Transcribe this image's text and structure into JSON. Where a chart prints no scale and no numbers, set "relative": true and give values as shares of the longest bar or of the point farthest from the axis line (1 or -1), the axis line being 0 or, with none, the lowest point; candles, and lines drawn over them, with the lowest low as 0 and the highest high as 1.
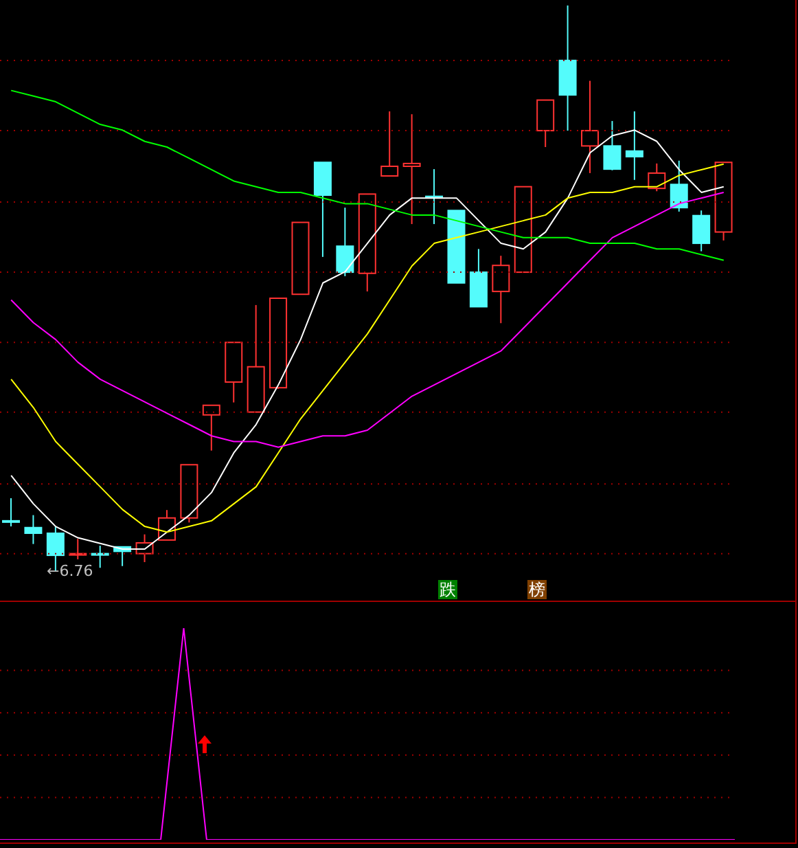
{
  "chart_data": [
    {
      "type": "candlestick",
      "relative": true,
      "ref_lines": [
        {
          "axis": "y",
          "value": 0.903,
          "color": "#a00000",
          "line_style": "dotted"
        },
        {
          "axis": "y",
          "value": 0.779,
          "color": "#a00000",
          "line_style": "dotted"
        },
        {
          "axis": "y",
          "value": 0.653,
          "color": "#a00000",
          "line_style": "dotted"
        },
        {
          "axis": "y",
          "value": 0.529,
          "color": "#a00000",
          "line_style": "dotted"
        },
        {
          "axis": "y",
          "value": 0.405,
          "color": "#a00000",
          "line_style": "dotted"
        },
        {
          "axis": "y",
          "value": 0.282,
          "color": "#a00000",
          "line_style": "dotted"
        },
        {
          "axis": "y",
          "value": 0.155,
          "color": "#a00000",
          "line_style": "dotted"
        },
        {
          "axis": "y",
          "value": 0.032,
          "color": "#a00000",
          "line_style": "dotted"
        }
      ],
      "categories": [
        null,
        null,
        null,
        null,
        null,
        null,
        null,
        null,
        null,
        null,
        null,
        null,
        null,
        null,
        null,
        null,
        null,
        null,
        null,
        null,
        null,
        null,
        null,
        null,
        null,
        null,
        null,
        null,
        null,
        null,
        null,
        null,
        null
      ],
      "ohlc": [
        [
          0.09,
          0.13,
          0.08,
          0.09
        ],
        [
          0.078,
          0.1,
          0.049,
          0.068
        ],
        [
          0.068,
          0.08,
          0,
          0.029
        ],
        [
          0.032,
          0.058,
          0.022,
          0.032
        ],
        [
          0.032,
          0.046,
          0.007,
          0.032
        ],
        [
          0.044,
          0.044,
          0.01,
          0.036
        ],
        [
          0.032,
          0.066,
          0.017,
          0.051
        ],
        [
          0.056,
          0.109,
          0.056,
          0.095
        ],
        [
          0.095,
          0.189,
          0.087,
          0.189
        ],
        [
          0.277,
          0.294,
          0.214,
          0.294
        ],
        [
          0.335,
          0.405,
          0.299,
          0.405
        ],
        [
          0.282,
          0.471,
          0.282,
          0.362
        ],
        [
          0.325,
          0.483,
          0.323,
          0.483
        ],
        [
          0.49,
          0.617,
          0.49,
          0.617
        ],
        [
          0.723,
          0.723,
          0.556,
          0.665
        ],
        [
          0.575,
          0.643,
          0.522,
          0.529
        ],
        [
          0.527,
          0.667,
          0.495,
          0.667
        ],
        [
          0.699,
          0.813,
          0.699,
          0.716
        ],
        [
          0.716,
          0.808,
          0.614,
          0.721
        ],
        [
          0.663,
          0.711,
          0.614,
          0.663
        ],
        [
          0.638,
          0.638,
          0.51,
          0.51
        ],
        [
          0.529,
          0.57,
          0.468,
          0.468
        ],
        [
          0.495,
          0.558,
          0.439,
          0.541
        ],
        [
          0.529,
          0.68,
          0.529,
          0.68
        ],
        [
          0.779,
          0.833,
          0.75,
          0.833
        ],
        [
          0.903,
          1,
          0.779,
          0.842
        ],
        [
          0.752,
          0.867,
          0.704,
          0.779
        ],
        [
          0.752,
          0.796,
          0.709,
          0.711
        ],
        [
          0.743,
          0.813,
          0.692,
          0.733
        ],
        [
          0.677,
          0.721,
          0.672,
          0.704
        ],
        [
          0.684,
          0.726,
          0.636,
          0.643
        ],
        [
          0.629,
          0.638,
          0.566,
          0.58
        ],
        [
          0.6,
          0.723,
          0.585,
          0.723
        ]
      ],
      "colors": [
        "#54fcfc",
        "#54fcfc",
        "#54fcfc",
        "#ff3232",
        "#54fcfc",
        "#54fcfc",
        "#ff3232",
        "#ff3232",
        "#ff3232",
        "#ff3232",
        "#ff3232",
        "#ff3232",
        "#ff3232",
        "#ff3232",
        "#54fcfc",
        "#54fcfc",
        "#ff3232",
        "#ff3232",
        "#ff3232",
        "#54fcfc",
        "#54fcfc",
        "#54fcfc",
        "#ff3232",
        "#ff3232",
        "#ff3232",
        "#54fcfc",
        "#ff3232",
        "#54fcfc",
        "#54fcfc",
        "#ff3232",
        "#54fcfc",
        "#54fcfc",
        "#ff3232"
      ],
      "series": [
        {
          "type": "line",
          "color": "#ffffff",
          "values": [
            0.17,
            0.12,
            0.08,
            0.06,
            0.05,
            0.04,
            0.04,
            0.07,
            0.1,
            0.14,
            0.21,
            0.26,
            0.33,
            0.41,
            0.51,
            0.53,
            0.58,
            0.63,
            0.66,
            0.66,
            0.66,
            0.62,
            0.58,
            0.57,
            0.6,
            0.66,
            0.74,
            0.77,
            0.78,
            0.76,
            0.71,
            0.67,
            0.68
          ]
        },
        {
          "type": "line",
          "color": "#ffff00",
          "values": [
            0.34,
            0.29,
            0.23,
            0.19,
            0.15,
            0.11,
            0.08,
            0.07,
            0.08,
            0.09,
            0.12,
            0.15,
            0.21,
            0.27,
            0.32,
            0.37,
            0.42,
            0.48,
            0.54,
            0.58,
            0.59,
            0.6,
            0.61,
            0.62,
            0.63,
            0.66,
            0.67,
            0.67,
            0.68,
            0.68,
            0.7,
            0.71,
            0.72
          ]
        },
        {
          "type": "line",
          "color": "#ff00ff",
          "values": [
            0.48,
            0.44,
            0.41,
            0.37,
            0.34,
            0.32,
            0.3,
            0.28,
            0.26,
            0.24,
            0.23,
            0.23,
            0.22,
            0.23,
            0.24,
            0.24,
            0.25,
            0.28,
            0.31,
            0.33,
            0.35,
            0.37,
            0.39,
            0.43,
            0.47,
            0.51,
            0.55,
            0.59,
            0.61,
            0.63,
            0.65,
            0.66,
            0.67
          ]
        },
        {
          "type": "line",
          "color": "#00ff00",
          "values": [
            0.85,
            0.84,
            0.83,
            0.81,
            0.79,
            0.78,
            0.76,
            0.75,
            0.73,
            0.71,
            0.69,
            0.68,
            0.67,
            0.67,
            0.66,
            0.65,
            0.65,
            0.64,
            0.63,
            0.63,
            0.62,
            0.61,
            0.6,
            0.59,
            0.59,
            0.59,
            0.58,
            0.58,
            0.58,
            0.57,
            0.57,
            0.56,
            0.55
          ]
        }
      ],
      "annotations": [
        "←6.76",
        "跌",
        "榜"
      ]
    },
    {
      "type": "line",
      "relative": true,
      "ref_lines": [
        {
          "axis": "y",
          "value": 0.8,
          "color": "#a00000",
          "line_style": "dotted"
        },
        {
          "axis": "y",
          "value": 0.6,
          "color": "#a00000",
          "line_style": "dotted"
        },
        {
          "axis": "y",
          "value": 0.4,
          "color": "#a00000",
          "line_style": "dotted"
        },
        {
          "axis": "y",
          "value": 0.2,
          "color": "#a00000",
          "line_style": "dotted"
        }
      ],
      "categories": [
        null,
        null,
        null,
        null,
        null,
        null,
        null,
        null,
        null,
        null,
        null,
        null,
        null,
        null,
        null,
        null,
        null,
        null,
        null,
        null,
        null,
        null,
        null,
        null,
        null,
        null,
        null,
        null,
        null,
        null,
        null,
        null,
        null
      ],
      "series": [
        {
          "color": "#ff00ff",
          "values": [
            0,
            0,
            0,
            0,
            0,
            0,
            0,
            0,
            1,
            0,
            0,
            0,
            0,
            0,
            0,
            0,
            0,
            0,
            0,
            0,
            0,
            0,
            0,
            0,
            0,
            0,
            0,
            0,
            0,
            0,
            0,
            0,
            0
          ]
        }
      ]
    }
  ]
}
